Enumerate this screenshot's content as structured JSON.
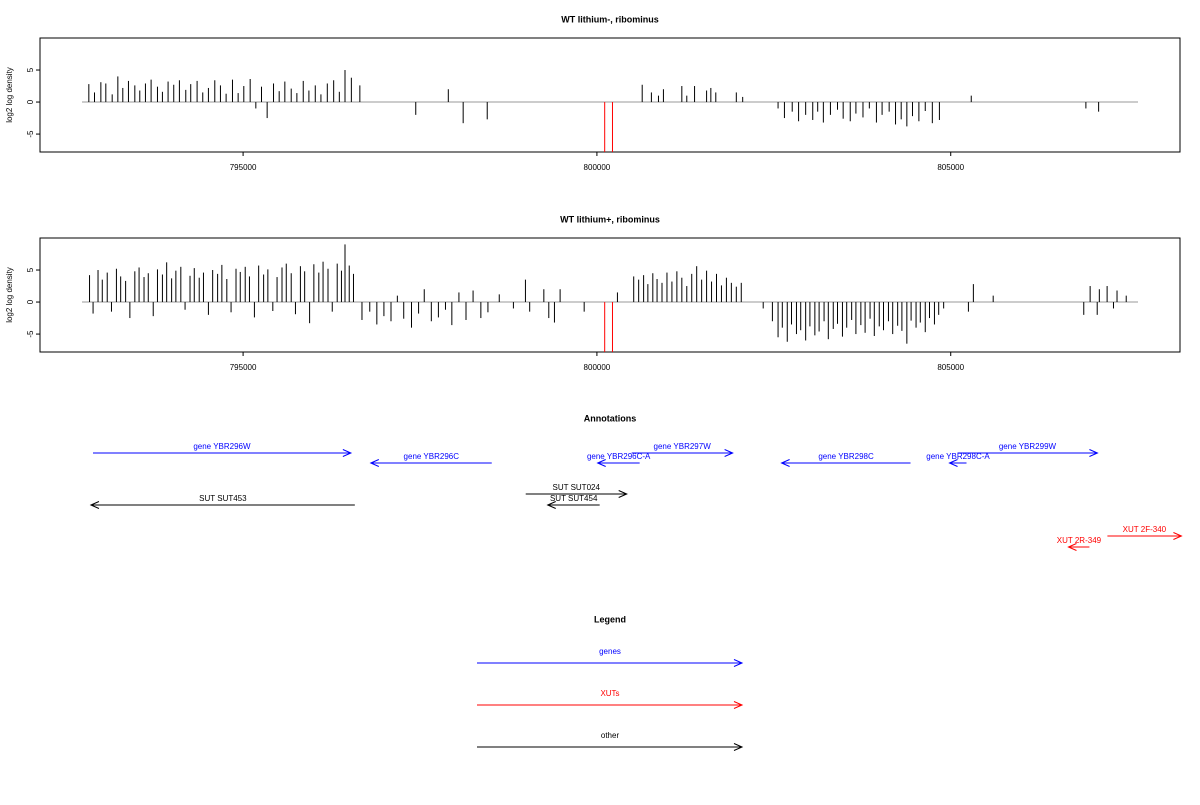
{
  "chart_data": [
    {
      "type": "bar",
      "title": "WT lithium-, ribominus",
      "y_label": "log2 log density",
      "xlim": [
        792130,
        808240
      ],
      "xticks": [
        795000,
        800000,
        805000
      ],
      "ylim": [
        -7.8,
        10
      ],
      "yticks": [
        -5,
        0,
        5
      ],
      "series": [
        {
          "color": "#000000",
          "x": [
            792820,
            792900,
            792990,
            793060,
            793150,
            793230,
            793300,
            793380,
            793470,
            793540,
            793620,
            793700,
            793790,
            793860,
            793940,
            794020,
            794100,
            794190,
            794260,
            794350,
            794430,
            794510,
            794600,
            794680,
            794760,
            794850,
            794930,
            795010,
            795100,
            795180,
            795260,
            795340,
            795430,
            795510,
            795590,
            795680,
            795760,
            795850,
            795930,
            796020,
            796100,
            796190,
            796280,
            796360,
            796440,
            796530,
            796650,
            797440,
            797900,
            798110,
            798450,
            800640,
            800770,
            800870,
            800940,
            801200,
            801270,
            801380,
            801550,
            801610,
            801680,
            801970,
            802060,
            802560,
            802650,
            802760,
            802850,
            802950,
            803050,
            803120,
            803200,
            803300,
            803400,
            803480,
            803580,
            803660,
            803760,
            803850,
            803950,
            804030,
            804130,
            804220,
            804300,
            804380,
            804460,
            804550,
            804640,
            804740,
            804840,
            805290,
            806910,
            807090
          ],
          "values": [
            2.8,
            1.5,
            3.1,
            2.9,
            1.2,
            4,
            2.2,
            3.3,
            2.6,
            1.8,
            2.9,
            3.5,
            2.4,
            1.6,
            3.2,
            2.7,
            3.4,
            1.9,
            2.8,
            3.3,
            1.5,
            2.2,
            3.4,
            2.6,
            1.3,
            3.5,
            1.4,
            2.5,
            3.6,
            -1,
            2.4,
            -2.5,
            2.9,
            1.7,
            3.2,
            2.1,
            1.4,
            3.3,
            1.8,
            2.6,
            1.2,
            2.9,
            3.4,
            1.6,
            5,
            3.8,
            2.6,
            -2,
            2,
            -3.3,
            -2.7,
            2.7,
            1.5,
            1,
            2,
            2.5,
            1,
            2.5,
            1.8,
            2.2,
            1.5,
            1.5,
            0.8,
            -1,
            -2.5,
            -1.5,
            -3,
            -2,
            -2.8,
            -1.5,
            -3.2,
            -2,
            -1.2,
            -2.6,
            -3,
            -1.8,
            -2.4,
            -1,
            -3.2,
            -2,
            -1.5,
            -3.5,
            -2.7,
            -3.8,
            -2.2,
            -3,
            -1.4,
            -3.3,
            -2.8,
            1,
            -1,
            -1.5
          ]
        },
        {
          "color": "#ff0000",
          "x": [
            800110,
            800220
          ],
          "values": [
            -7.8,
            -7.8
          ]
        }
      ]
    },
    {
      "type": "bar",
      "title": "WT lithium+, ribominus",
      "y_label": "log2 log density",
      "xlim": [
        792130,
        808240
      ],
      "xticks": [
        795000,
        800000,
        805000
      ],
      "ylim": [
        -7.8,
        10
      ],
      "yticks": [
        -5,
        0,
        5
      ],
      "series": [
        {
          "color": "#000000",
          "x": [
            792830,
            792880,
            792950,
            793010,
            793080,
            793140,
            793210,
            793270,
            793340,
            793400,
            793470,
            793530,
            793600,
            793660,
            793730,
            793790,
            793860,
            793920,
            793990,
            794050,
            794120,
            794180,
            794250,
            794310,
            794380,
            794440,
            794510,
            794570,
            794640,
            794700,
            794770,
            794830,
            794900,
            794960,
            795030,
            795090,
            795160,
            795220,
            795290,
            795350,
            795420,
            795480,
            795550,
            795610,
            795680,
            795740,
            795810,
            795870,
            795940,
            796000,
            796070,
            796130,
            796200,
            796260,
            796330,
            796390,
            796440,
            796500,
            796560,
            796680,
            796790,
            796890,
            796990,
            797090,
            797180,
            797270,
            797380,
            797480,
            797560,
            797660,
            797760,
            797860,
            797950,
            798050,
            798150,
            798250,
            798360,
            798460,
            798620,
            798820,
            798990,
            799050,
            799250,
            799320,
            799400,
            799480,
            799820,
            800290,
            800520,
            800590,
            800660,
            800720,
            800790,
            800850,
            800920,
            800990,
            801060,
            801130,
            801200,
            801270,
            801340,
            801410,
            801480,
            801550,
            801620,
            801690,
            801760,
            801830,
            801900,
            801970,
            802040,
            802350,
            802480,
            802560,
            802620,
            802690,
            802750,
            802820,
            802880,
            802950,
            803010,
            803080,
            803140,
            803210,
            803270,
            803340,
            803400,
            803470,
            803530,
            803600,
            803660,
            803730,
            803790,
            803860,
            803920,
            803990,
            804050,
            804120,
            804180,
            804250,
            804310,
            804380,
            804440,
            804510,
            804570,
            804640,
            804700,
            804770,
            804830,
            804900,
            805250,
            805320,
            805600,
            806880,
            806970,
            807070,
            807100,
            807210,
            807300,
            807350,
            807480
          ],
          "values": [
            4.2,
            -1.8,
            5,
            3.5,
            4.6,
            -1.5,
            5.2,
            4,
            3.3,
            -2.5,
            4.8,
            5.4,
            3.9,
            4.5,
            -2.2,
            5.1,
            4.3,
            6.2,
            3.7,
            4.9,
            5.5,
            -1.2,
            4.1,
            5.3,
            3.8,
            4.6,
            -2,
            5,
            4.4,
            5.8,
            3.6,
            -1.6,
            5.2,
            4.7,
            5.5,
            4,
            -2.4,
            5.7,
            4.3,
            5.1,
            -1.4,
            3.9,
            5.4,
            6,
            4.5,
            -1.9,
            5.6,
            4.8,
            -3.3,
            5.9,
            4.6,
            6.3,
            5.2,
            -1.5,
            6,
            4.9,
            9,
            5.7,
            4.4,
            -2.8,
            -1.5,
            -3.5,
            -2.2,
            -3,
            1,
            -2.6,
            -4,
            -1.8,
            2,
            -3,
            -2.4,
            -1.2,
            -3.6,
            1.5,
            -2.8,
            1.8,
            -2.5,
            -1.6,
            1.2,
            -1,
            3.5,
            -1.5,
            2,
            -2.5,
            -3.2,
            2,
            -1.5,
            1.5,
            4,
            3.5,
            4.2,
            2.8,
            4.5,
            3.6,
            3,
            4.6,
            3.2,
            4.8,
            3.8,
            2.5,
            4.4,
            5.6,
            3.5,
            4.9,
            3.2,
            4.4,
            2.6,
            3.8,
            3,
            2.4,
            3,
            -1,
            -3,
            -5.5,
            -4,
            -6.2,
            -3.5,
            -5,
            -4.4,
            -6,
            -3.8,
            -5.2,
            -4.6,
            -3,
            -5.8,
            -4.2,
            -3.4,
            -5.4,
            -4,
            -2.8,
            -5,
            -3.6,
            -4.8,
            -2.6,
            -5.3,
            -3.8,
            -4.4,
            -3,
            -5,
            -3.7,
            -4.5,
            -6.5,
            -2.9,
            -4,
            -3.2,
            -4.7,
            -2.5,
            -3.5,
            -2,
            -1,
            -1.5,
            2.8,
            1,
            -2,
            2.5,
            -2,
            2,
            2.5,
            -1,
            1.8,
            1
          ]
        },
        {
          "color": "#ff0000",
          "x": [
            800110,
            800220
          ],
          "values": [
            -7.8,
            -7.8
          ]
        }
      ]
    }
  ],
  "annotations": {
    "title": "Annotations",
    "features": [
      {
        "label": "gene YBR296W",
        "from": 792879,
        "to": 796523,
        "color": "#0000ff"
      },
      {
        "label": "gene YBR296C",
        "from": 798514,
        "to": 796805,
        "color": "#0000ff"
      },
      {
        "label": "gene YBR296C-A",
        "from": 800604,
        "to": 800011,
        "color": "#0000ff"
      },
      {
        "label": "gene YBR297W",
        "from": 800491,
        "to": 801918,
        "color": "#0000ff"
      },
      {
        "label": "gene YBR298C",
        "from": 804432,
        "to": 802610,
        "color": "#0000ff"
      },
      {
        "label": "gene YBR298C-A",
        "from": 805223,
        "to": 804983,
        "color": "#0000ff"
      },
      {
        "label": "gene YBR299W",
        "from": 805096,
        "to": 807073,
        "color": "#0000ff"
      },
      {
        "label": "SUT SUT453",
        "from": 796579,
        "to": 792850,
        "color": "#000000"
      },
      {
        "label": "SUT SUT024",
        "from": 798994,
        "to": 800421,
        "color": "#000000"
      },
      {
        "label": "SUT SUT454",
        "from": 800039,
        "to": 799305,
        "color": "#000000"
      },
      {
        "label": "XUT 2F-340",
        "from": 807214,
        "to": 808260,
        "color": "#ff0000"
      },
      {
        "label": "XUT 2R-349",
        "from": 806960,
        "to": 806664,
        "color": "#ff0000"
      }
    ]
  },
  "legend": {
    "title": "Legend",
    "entries": [
      {
        "label": "genes",
        "color": "#0000ff"
      },
      {
        "label": "XUTs",
        "color": "#ff0000"
      },
      {
        "label": "other",
        "color": "#000000"
      }
    ]
  }
}
